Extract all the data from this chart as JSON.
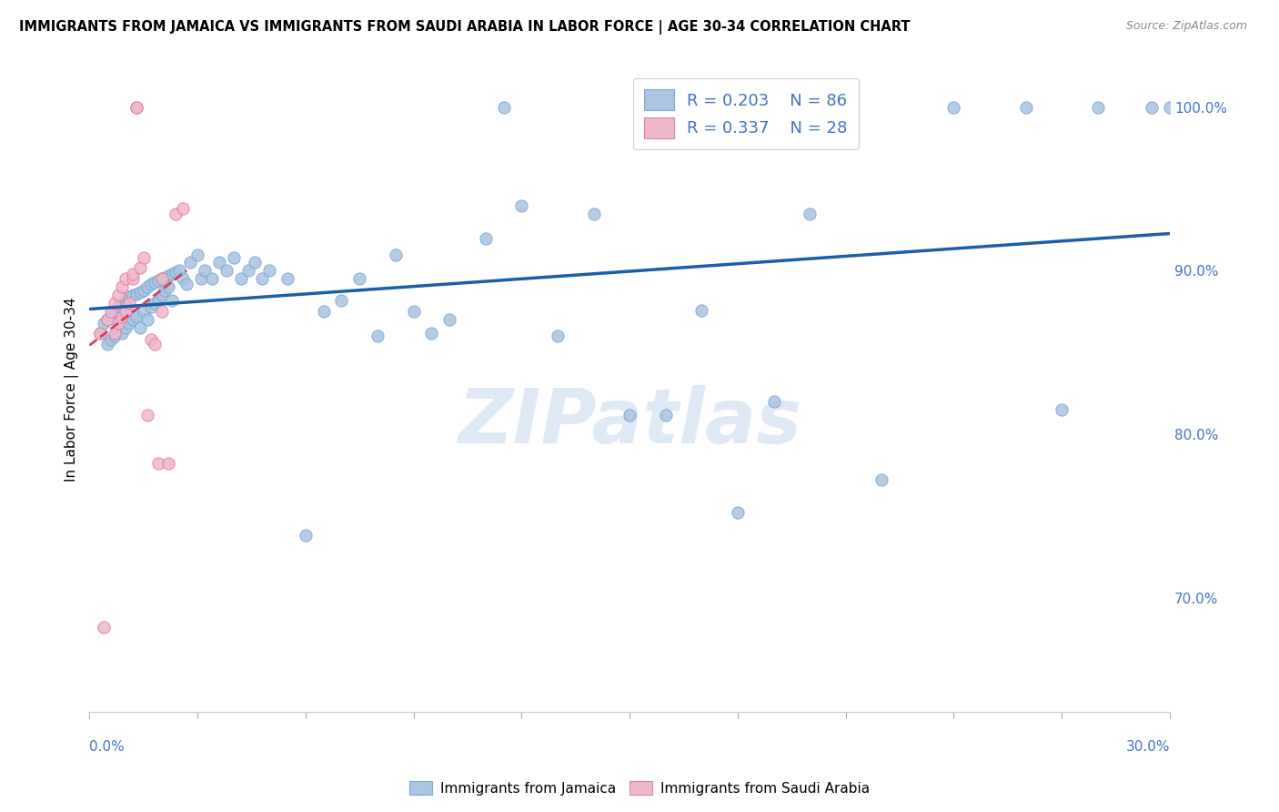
{
  "title": "IMMIGRANTS FROM JAMAICA VS IMMIGRANTS FROM SAUDI ARABIA IN LABOR FORCE | AGE 30-34 CORRELATION CHART",
  "source": "Source: ZipAtlas.com",
  "ylabel": "In Labor Force | Age 30-34",
  "xmin": 0.0,
  "xmax": 0.3,
  "ymin": 0.63,
  "ymax": 1.025,
  "jamaica_color": "#aac4e2",
  "jamaica_edge": "#7aaad0",
  "saudi_color": "#f0b8cc",
  "saudi_edge": "#e080a0",
  "trend_jamaica_color": "#1a5fa8",
  "trend_saudi_color": "#d04060",
  "R_jamaica": 0.203,
  "N_jamaica": 86,
  "R_saudi": 0.337,
  "N_saudi": 28,
  "legend_label_jamaica": "Immigrants from Jamaica",
  "legend_label_saudi": "Immigrants from Saudi Arabia",
  "jamaica_x": [
    0.003,
    0.004,
    0.005,
    0.005,
    0.006,
    0.006,
    0.007,
    0.007,
    0.008,
    0.008,
    0.009,
    0.009,
    0.01,
    0.01,
    0.01,
    0.011,
    0.011,
    0.012,
    0.012,
    0.013,
    0.013,
    0.014,
    0.014,
    0.015,
    0.015,
    0.016,
    0.016,
    0.017,
    0.017,
    0.018,
    0.018,
    0.019,
    0.019,
    0.02,
    0.02,
    0.021,
    0.021,
    0.022,
    0.022,
    0.023,
    0.023,
    0.024,
    0.025,
    0.026,
    0.027,
    0.028,
    0.03,
    0.031,
    0.032,
    0.034,
    0.036,
    0.038,
    0.04,
    0.042,
    0.044,
    0.046,
    0.048,
    0.05,
    0.055,
    0.06,
    0.065,
    0.07,
    0.075,
    0.08,
    0.085,
    0.09,
    0.095,
    0.1,
    0.11,
    0.12,
    0.13,
    0.14,
    0.15,
    0.16,
    0.17,
    0.18,
    0.19,
    0.2,
    0.22,
    0.24,
    0.115,
    0.26,
    0.27,
    0.28,
    0.295,
    0.3
  ],
  "jamaica_y": [
    0.862,
    0.868,
    0.87,
    0.855,
    0.872,
    0.858,
    0.875,
    0.86,
    0.878,
    0.865,
    0.88,
    0.862,
    0.882,
    0.865,
    0.875,
    0.884,
    0.868,
    0.885,
    0.87,
    0.886,
    0.872,
    0.887,
    0.865,
    0.888,
    0.875,
    0.89,
    0.87,
    0.892,
    0.878,
    0.893,
    0.88,
    0.894,
    0.882,
    0.895,
    0.885,
    0.896,
    0.888,
    0.897,
    0.89,
    0.898,
    0.882,
    0.899,
    0.9,
    0.895,
    0.892,
    0.905,
    0.91,
    0.895,
    0.9,
    0.895,
    0.905,
    0.9,
    0.908,
    0.895,
    0.9,
    0.905,
    0.895,
    0.9,
    0.895,
    0.738,
    0.875,
    0.882,
    0.895,
    0.86,
    0.91,
    0.875,
    0.862,
    0.87,
    0.92,
    0.94,
    0.86,
    0.935,
    0.812,
    0.812,
    0.876,
    0.752,
    0.82,
    0.935,
    0.772,
    1.0,
    1.0,
    1.0,
    0.815,
    1.0,
    1.0,
    1.0
  ],
  "saudi_x": [
    0.003,
    0.005,
    0.006,
    0.007,
    0.007,
    0.008,
    0.008,
    0.009,
    0.009,
    0.01,
    0.01,
    0.011,
    0.012,
    0.012,
    0.013,
    0.013,
    0.014,
    0.015,
    0.016,
    0.017,
    0.018,
    0.019,
    0.02,
    0.02,
    0.022,
    0.024,
    0.026,
    0.004
  ],
  "saudi_y": [
    0.862,
    0.87,
    0.875,
    0.88,
    0.862,
    0.885,
    0.868,
    0.89,
    0.872,
    0.895,
    0.875,
    0.88,
    0.895,
    0.898,
    1.0,
    1.0,
    0.902,
    0.908,
    0.812,
    0.858,
    0.855,
    0.782,
    0.875,
    0.895,
    0.782,
    0.935,
    0.938,
    0.682
  ],
  "background_color": "#ffffff",
  "grid_color": "#dddddd",
  "watermark_text": "ZIPatlas",
  "watermark_color": "#c5d8ee",
  "watermark_alpha": 0.55,
  "right_yticks": [
    0.7,
    0.8,
    0.9,
    1.0
  ],
  "right_yticklabels": [
    "70.0%",
    "80.0%",
    "90.0%",
    "100.0%"
  ],
  "ytick_color": "#4472c4"
}
